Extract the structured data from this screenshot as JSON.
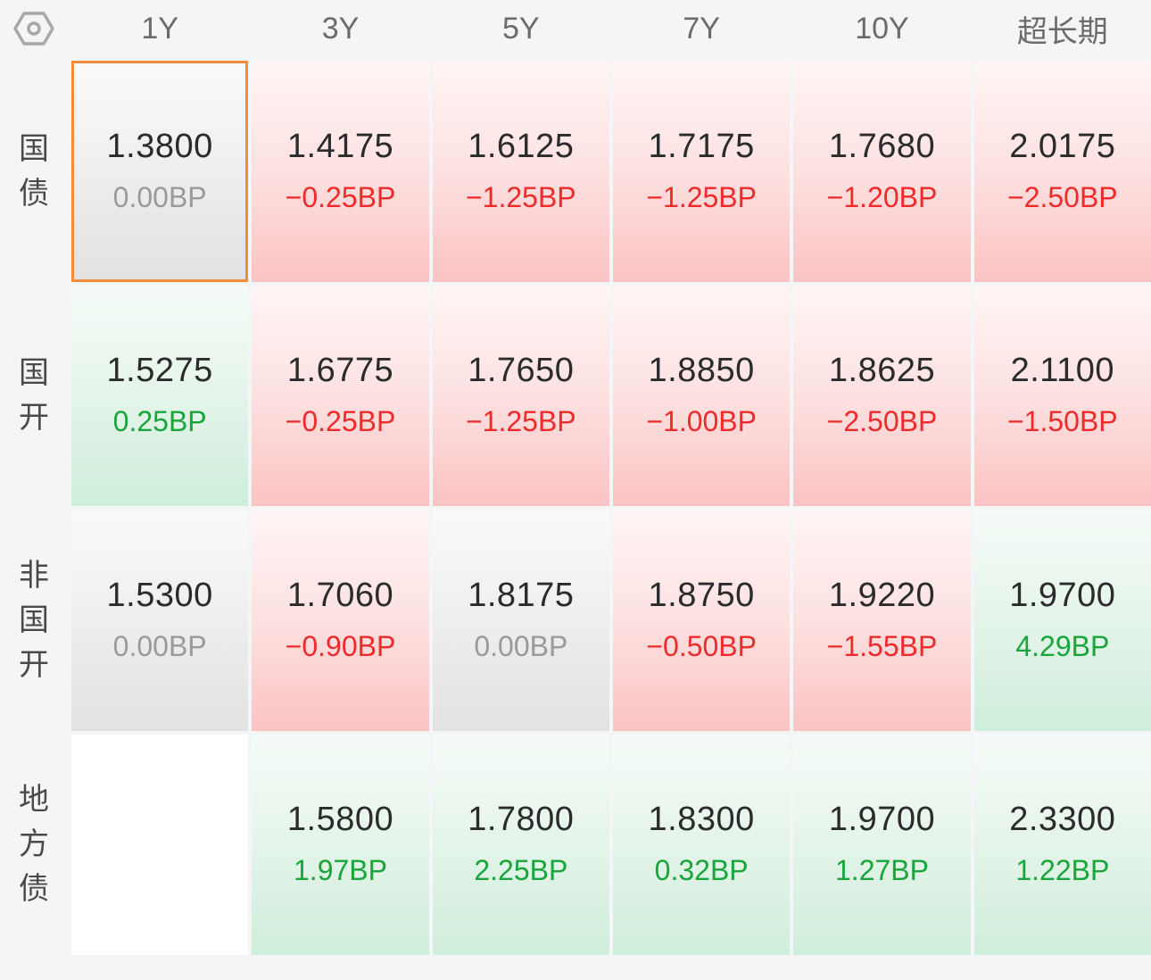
{
  "settings_icon": "hexagon-settings-icon",
  "colors": {
    "up": "#ee2a2a",
    "down": "#19a53a",
    "flat": "#9a9a9a",
    "selected_border": "#f08c3c"
  },
  "columns": [
    "1Y",
    "3Y",
    "5Y",
    "7Y",
    "10Y",
    "超长期"
  ],
  "rows": [
    {
      "label": "国债",
      "cells": [
        {
          "rate": "1.3800",
          "change": "0.00BP",
          "trend": "flat",
          "selected": true
        },
        {
          "rate": "1.4175",
          "change": "−0.25BP",
          "trend": "up"
        },
        {
          "rate": "1.6125",
          "change": "−1.25BP",
          "trend": "up"
        },
        {
          "rate": "1.7175",
          "change": "−1.25BP",
          "trend": "up"
        },
        {
          "rate": "1.7680",
          "change": "−1.20BP",
          "trend": "up"
        },
        {
          "rate": "2.0175",
          "change": "−2.50BP",
          "trend": "up"
        }
      ]
    },
    {
      "label": "国开",
      "cells": [
        {
          "rate": "1.5275",
          "change": "0.25BP",
          "trend": "down"
        },
        {
          "rate": "1.6775",
          "change": "−0.25BP",
          "trend": "up"
        },
        {
          "rate": "1.7650",
          "change": "−1.25BP",
          "trend": "up"
        },
        {
          "rate": "1.8850",
          "change": "−1.00BP",
          "trend": "up"
        },
        {
          "rate": "1.8625",
          "change": "−2.50BP",
          "trend": "up"
        },
        {
          "rate": "2.1100",
          "change": "−1.50BP",
          "trend": "up"
        }
      ]
    },
    {
      "label": "非国开",
      "cells": [
        {
          "rate": "1.5300",
          "change": "0.00BP",
          "trend": "flat"
        },
        {
          "rate": "1.7060",
          "change": "−0.90BP",
          "trend": "up"
        },
        {
          "rate": "1.8175",
          "change": "0.00BP",
          "trend": "flat"
        },
        {
          "rate": "1.8750",
          "change": "−0.50BP",
          "trend": "up"
        },
        {
          "rate": "1.9220",
          "change": "−1.55BP",
          "trend": "up"
        },
        {
          "rate": "1.9700",
          "change": "4.29BP",
          "trend": "down"
        }
      ]
    },
    {
      "label": "地方债",
      "cells": [
        {
          "rate": "",
          "change": "",
          "trend": "empty"
        },
        {
          "rate": "1.5800",
          "change": "1.97BP",
          "trend": "down"
        },
        {
          "rate": "1.7800",
          "change": "2.25BP",
          "trend": "down"
        },
        {
          "rate": "1.8300",
          "change": "0.32BP",
          "trend": "down"
        },
        {
          "rate": "1.9700",
          "change": "1.27BP",
          "trend": "down"
        },
        {
          "rate": "2.3300",
          "change": "1.22BP",
          "trend": "down"
        }
      ]
    }
  ]
}
